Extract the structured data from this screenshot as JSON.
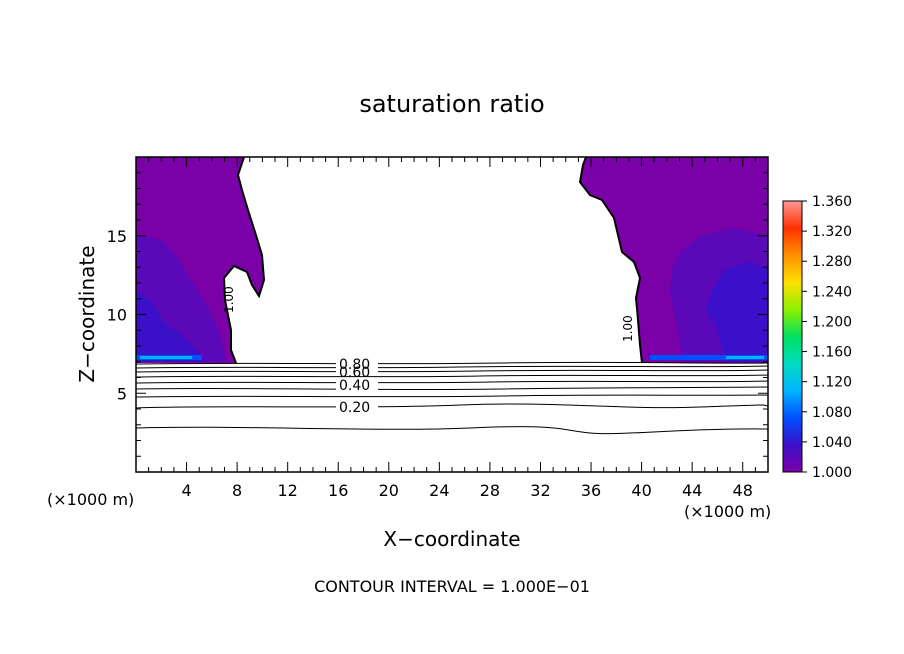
{
  "chart_data": {
    "type": "heatmap",
    "title": "saturation ratio",
    "xlabel": "X−coordinate",
    "ylabel": "Z−coordinate",
    "x_unit_left": "(×1000 m)",
    "x_unit_right": "(×1000 m)",
    "xlim": [
      0,
      50
    ],
    "ylim": [
      0,
      20
    ],
    "x_ticks": [
      4,
      8,
      12,
      16,
      20,
      24,
      28,
      32,
      36,
      40,
      44,
      48
    ],
    "y_ticks": [
      5,
      10,
      15
    ],
    "colorbar": {
      "min": 1.0,
      "max": 1.36,
      "labels": [
        "1.360",
        "1.320",
        "1.280",
        "1.240",
        "1.200",
        "1.160",
        "1.120",
        "1.080",
        "1.040",
        "1.000"
      ],
      "colors": [
        "#7a00a8",
        "#3c10c8",
        "#0050ff",
        "#00b4ff",
        "#00dcc0",
        "#00e060",
        "#90f000",
        "#ffe000",
        "#ff9000",
        "#ff3000",
        "#ff9898"
      ]
    },
    "contour_labels": [
      {
        "text": "1.00",
        "x": 7.9,
        "z": 10.8
      },
      {
        "text": "1.00",
        "x": 39.7,
        "z": 9.5
      },
      {
        "text": "0.80",
        "x": 17.5,
        "z": 6.9
      },
      {
        "text": "0.60",
        "x": 17.5,
        "z": 6.4
      },
      {
        "text": "0.40",
        "x": 17.5,
        "z": 5.5
      },
      {
        "text": "0.20",
        "x": 17.5,
        "z": 4.1
      }
    ],
    "contour_levels": [
      0.2,
      0.3,
      0.4,
      0.5,
      0.6,
      0.7,
      0.8,
      0.9,
      1.0
    ],
    "grid": false,
    "legend": "colorbar right"
  },
  "footer": "CONTOUR INTERVAL = 1.000E−01"
}
